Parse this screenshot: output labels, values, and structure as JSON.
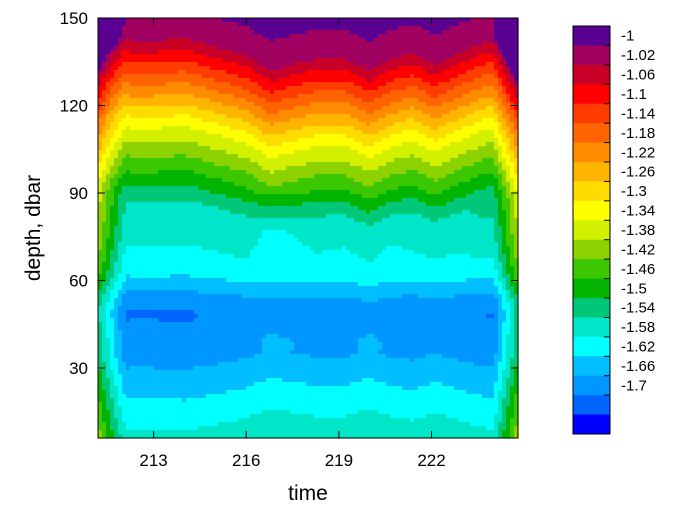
{
  "chart_data": {
    "type": "heatmap",
    "subtype": "filled-contour",
    "title": "",
    "xlabel": "time",
    "ylabel": "depth, dbar",
    "xlim": [
      211.2,
      224.8
    ],
    "ylim": [
      6,
      150
    ],
    "xticks": [
      213,
      216,
      219,
      222
    ],
    "yticks": [
      30,
      60,
      90,
      120,
      150
    ],
    "x": [
      211.2,
      212.1,
      213.0,
      214.0,
      215.0,
      215.8,
      216.5,
      217.2,
      218.0,
      218.9,
      219.7,
      220.4,
      221.2,
      222.0,
      222.9,
      223.8,
      224.8
    ],
    "depth_levels": [
      6,
      10,
      15,
      20,
      25,
      30,
      35,
      40,
      45,
      50,
      55,
      60,
      65,
      70,
      75,
      80,
      85,
      90,
      95,
      100,
      105,
      110,
      115,
      120,
      125,
      130,
      135,
      140,
      145,
      150
    ],
    "legend_levels": [
      "-1",
      "-1.02",
      "-1.06",
      "-1.1",
      "-1.14",
      "-1.18",
      "-1.22",
      "-1.26",
      "-1.3",
      "-1.34",
      "-1.38",
      "-1.42",
      "-1.46",
      "-1.5",
      "-1.54",
      "-1.58",
      "-1.62",
      "-1.66",
      "-1.7"
    ],
    "colorbar": {
      "placement": "right",
      "colors": [
        "#5a0090",
        "#a00060",
        "#c80028",
        "#ff0000",
        "#ff3c00",
        "#ff6400",
        "#ff8c00",
        "#ffb400",
        "#ffdc00",
        "#ffff00",
        "#d2f000",
        "#8cd200",
        "#3cc800",
        "#00b400",
        "#00c878",
        "#00e6c8",
        "#00ffff",
        "#00beff",
        "#0096ff",
        "#0064ff",
        "#0000ff"
      ]
    }
  }
}
